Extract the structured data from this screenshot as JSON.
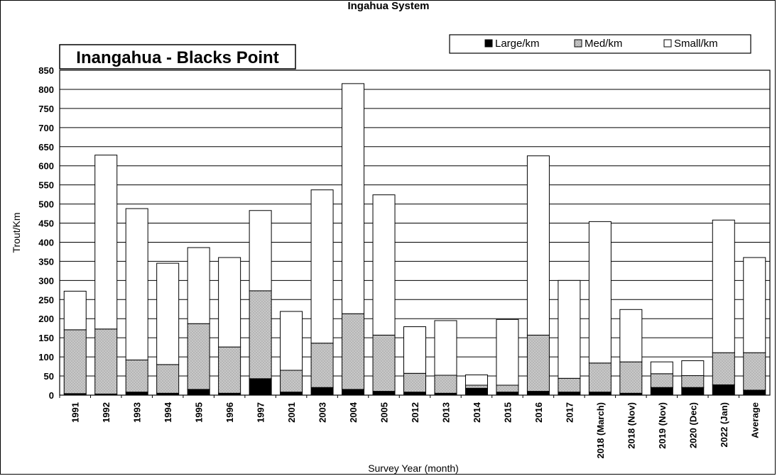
{
  "chart_data": {
    "type": "bar",
    "stacked": true,
    "title": "Inangahua - Blacks Point",
    "top_title": "Ingahua System",
    "xlabel": "Survey Year (month)",
    "ylabel": "Trout/Km",
    "ylim": [
      0,
      850
    ],
    "ytick_step": 50,
    "grid": true,
    "legend_position": "top-right",
    "categories": [
      "1991",
      "1992",
      "1993",
      "1994",
      "1995",
      "1996",
      "1997",
      "2001",
      "2003",
      "2004",
      "2005",
      "2012",
      "2013",
      "2014",
      "2015",
      "2016",
      "2017",
      "2018 (March)",
      "2018 (Nov)",
      "2019 (Nov)",
      "2020 (Dec)",
      "2022 (Jan)",
      "Average"
    ],
    "series": [
      {
        "name": "Large/km",
        "color": "#000000",
        "pattern": "solid",
        "values": [
          4,
          3,
          8,
          5,
          15,
          5,
          43,
          8,
          20,
          15,
          10,
          8,
          5,
          18,
          8,
          10,
          8,
          8,
          5,
          20,
          20,
          27,
          13
        ]
      },
      {
        "name": "Med/km",
        "color": "#c0c0c0",
        "pattern": "dotted",
        "values": [
          167,
          170,
          84,
          75,
          172,
          121,
          230,
          57,
          116,
          198,
          147,
          49,
          47,
          8,
          18,
          147,
          36,
          76,
          82,
          36,
          31,
          84,
          98
        ]
      },
      {
        "name": "Small/km",
        "color": "#ffffff",
        "pattern": "empty",
        "values": [
          101,
          455,
          396,
          265,
          199,
          234,
          210,
          154,
          401,
          602,
          367,
          122,
          143,
          27,
          172,
          469,
          256,
          370,
          137,
          31,
          39,
          347,
          249
        ]
      }
    ]
  }
}
